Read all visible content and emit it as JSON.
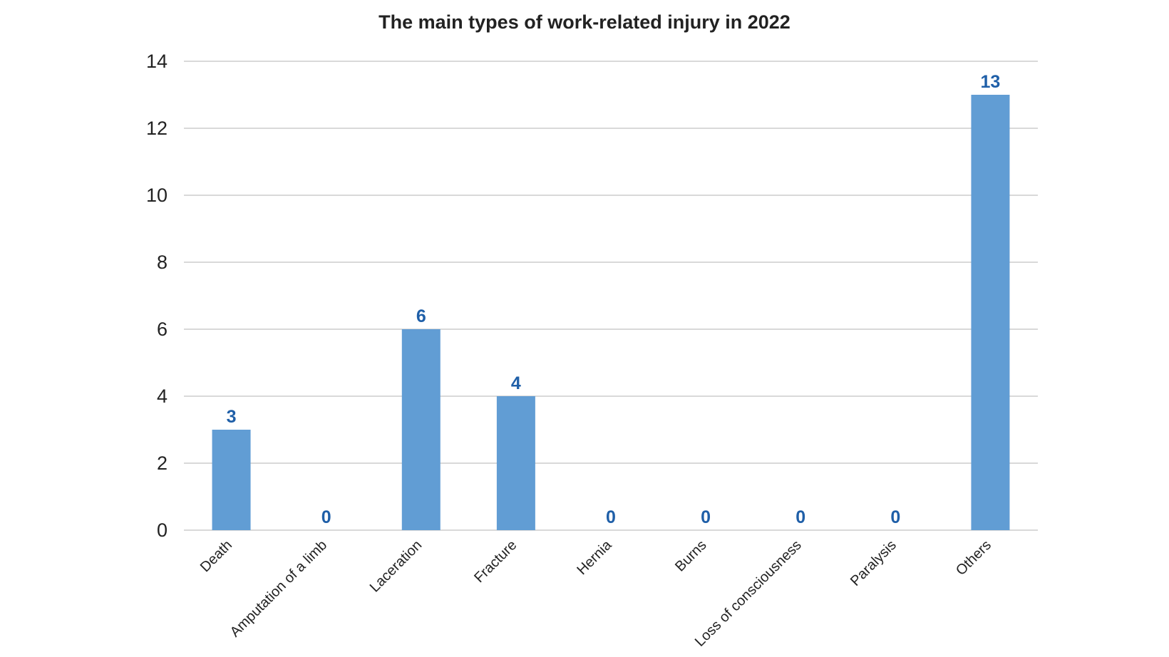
{
  "chart_data": {
    "type": "bar",
    "title": "The main types of work-related injury in 2022",
    "xlabel": "",
    "ylabel": "",
    "categories": [
      "Death",
      "Amputation of a limb",
      "Laceration",
      "Fracture",
      "Hernia",
      "Burns",
      "Loss of consciousness",
      "Paralysis",
      "Others"
    ],
    "values": [
      3,
      0,
      6,
      4,
      0,
      0,
      0,
      0,
      13
    ],
    "ylim": [
      0,
      14
    ],
    "yticks": [
      "0",
      "2",
      "4",
      "6",
      "8",
      "10",
      "12",
      "14"
    ],
    "grid": true,
    "legend": "none",
    "colors": {
      "bar": "#619DD4",
      "label": "#1F5FA8",
      "grid": "#D9D9D9"
    }
  }
}
